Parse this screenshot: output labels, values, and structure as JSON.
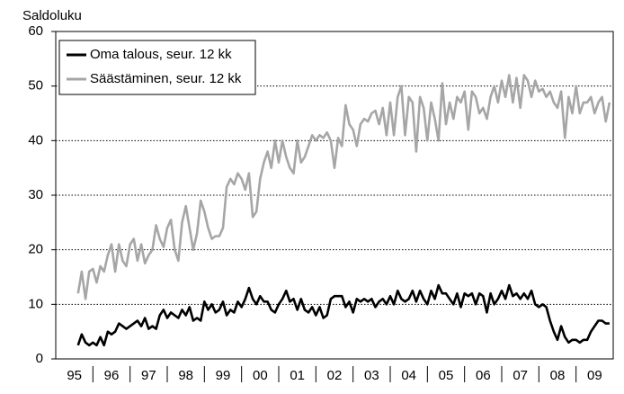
{
  "chart_data": {
    "type": "line",
    "y_axis_label": "Saldoluku",
    "x": [
      1995.6,
      1995.7,
      1995.8,
      1995.9,
      1996.0,
      1996.1,
      1996.2,
      1996.3,
      1996.4,
      1996.5,
      1996.6,
      1996.7,
      1996.8,
      1996.9,
      1997.0,
      1997.1,
      1997.2,
      1997.3,
      1997.4,
      1997.5,
      1997.6,
      1997.7,
      1997.8,
      1997.9,
      1998.0,
      1998.1,
      1998.2,
      1998.3,
      1998.4,
      1998.5,
      1998.6,
      1998.7,
      1998.8,
      1998.9,
      1999.0,
      1999.1,
      1999.2,
      1999.3,
      1999.4,
      1999.5,
      1999.6,
      1999.7,
      1999.8,
      1999.9,
      2000.0,
      2000.1,
      2000.2,
      2000.3,
      2000.4,
      2000.5,
      2000.6,
      2000.7,
      2000.8,
      2000.9,
      2001.0,
      2001.1,
      2001.2,
      2001.3,
      2001.4,
      2001.5,
      2001.6,
      2001.7,
      2001.8,
      2001.9,
      2002.0,
      2002.1,
      2002.2,
      2002.3,
      2002.4,
      2002.5,
      2002.6,
      2002.7,
      2002.8,
      2002.9,
      2003.0,
      2003.1,
      2003.2,
      2003.3,
      2003.4,
      2003.5,
      2003.6,
      2003.7,
      2003.8,
      2003.9,
      2004.0,
      2004.1,
      2004.2,
      2004.3,
      2004.4,
      2004.5,
      2004.6,
      2004.7,
      2004.8,
      2004.9,
      2005.0,
      2005.1,
      2005.2,
      2005.3,
      2005.4,
      2005.5,
      2005.6,
      2005.7,
      2005.8,
      2005.9,
      2006.0,
      2006.1,
      2006.2,
      2006.3,
      2006.4,
      2006.5,
      2006.6,
      2006.7,
      2006.8,
      2006.9,
      2007.0,
      2007.1,
      2007.2,
      2007.3,
      2007.4,
      2007.5,
      2007.6,
      2007.7,
      2007.8,
      2007.9,
      2008.0,
      2008.1,
      2008.2,
      2008.3,
      2008.4,
      2008.5,
      2008.6,
      2008.7,
      2008.8,
      2008.9,
      2009.0,
      2009.1,
      2009.2,
      2009.3,
      2009.4,
      2009.5,
      2009.6,
      2009.7,
      2009.8,
      2009.9
    ],
    "series": [
      {
        "name": "Oma talous, seur. 12 kk",
        "color": "#000000",
        "values": [
          2.5,
          4.5,
          3,
          2.5,
          3,
          2.5,
          4,
          2.5,
          5,
          4.5,
          5,
          6.5,
          6,
          5.5,
          6,
          6.5,
          7,
          6,
          7.5,
          5.5,
          6,
          5.5,
          8,
          9,
          7.5,
          8.5,
          8,
          7.5,
          9,
          8,
          9.5,
          7,
          7.5,
          7,
          10.5,
          9,
          10,
          8.5,
          9,
          10.5,
          8,
          9,
          8.5,
          10.5,
          9.5,
          11,
          13,
          11,
          10,
          11.5,
          10.5,
          10.5,
          9,
          8.5,
          10,
          11,
          12.5,
          10.5,
          11,
          9,
          11,
          9,
          8.5,
          9.5,
          8,
          9.5,
          7.5,
          8,
          11,
          11.5,
          11.5,
          11.5,
          9.5,
          10.5,
          8.5,
          11,
          10.5,
          11,
          10.5,
          11,
          9.5,
          10.5,
          11,
          10,
          11.5,
          10,
          12.5,
          11,
          10.5,
          11,
          12.5,
          10.5,
          12.5,
          11,
          10,
          12.5,
          11,
          13.5,
          12,
          12,
          11,
          10,
          12,
          9.5,
          12,
          11.5,
          12,
          10,
          12,
          11.5,
          8.5,
          12,
          10,
          11,
          12.5,
          11,
          13.5,
          11.5,
          12,
          11,
          12,
          11,
          12.5,
          10,
          9.5,
          10,
          9.5,
          7,
          5,
          3.5,
          6,
          4,
          3,
          3.5,
          3.5,
          3,
          3.5,
          3.5,
          5,
          6,
          7,
          7,
          6.5,
          6.5
        ]
      },
      {
        "name": "Säästäminen, seur. 12 kk",
        "color": "#a6a6a6",
        "values": [
          12,
          16,
          11,
          16,
          16.5,
          14,
          17,
          16,
          19,
          21,
          16,
          21,
          18,
          17,
          21,
          22,
          18,
          21,
          17.5,
          19,
          20,
          24.5,
          22,
          20.5,
          24,
          25.5,
          20,
          18,
          25,
          28,
          24,
          20,
          23,
          29,
          27,
          24,
          22,
          22.5,
          22.5,
          24,
          31.5,
          33,
          32,
          34,
          33,
          31,
          34,
          26,
          27,
          33,
          36,
          38,
          35,
          40,
          36,
          40,
          37,
          35,
          34,
          40,
          36,
          37,
          39,
          41,
          40,
          41,
          40.5,
          41.5,
          40,
          35,
          40.5,
          39,
          46.5,
          43,
          42,
          39,
          43,
          44,
          43.5,
          45,
          45.5,
          43,
          46,
          41,
          47,
          41,
          48,
          50,
          41,
          48,
          47,
          38,
          48,
          46,
          40,
          47,
          44,
          40,
          50.5,
          43,
          47,
          44,
          48,
          47,
          49,
          42,
          49,
          48,
          45,
          46,
          44,
          48,
          50,
          47,
          51,
          48,
          52,
          47,
          51.5,
          46,
          52,
          51,
          48,
          51,
          49,
          49.5,
          48,
          49,
          47,
          46,
          49,
          40.5,
          48,
          45,
          50,
          45,
          47,
          47,
          48,
          45,
          47,
          48,
          43.5,
          47
        ]
      }
    ],
    "xlim": [
      1995,
      2010
    ],
    "xticks": [
      {
        "value": 1995.5,
        "label": "95"
      },
      {
        "value": 1996.5,
        "label": "96"
      },
      {
        "value": 1997.5,
        "label": "97"
      },
      {
        "value": 1998.5,
        "label": "98"
      },
      {
        "value": 1999.5,
        "label": "99"
      },
      {
        "value": 2000.5,
        "label": "00"
      },
      {
        "value": 2001.5,
        "label": "01"
      },
      {
        "value": 2002.5,
        "label": "02"
      },
      {
        "value": 2003.5,
        "label": "03"
      },
      {
        "value": 2004.5,
        "label": "04"
      },
      {
        "value": 2005.5,
        "label": "05"
      },
      {
        "value": 2006.5,
        "label": "06"
      },
      {
        "value": 2007.5,
        "label": "07"
      },
      {
        "value": 2008.5,
        "label": "08"
      },
      {
        "value": 2009.5,
        "label": "09"
      }
    ],
    "ylim": [
      0,
      60
    ],
    "yticks": [
      0,
      10,
      20,
      30,
      40,
      50,
      60
    ],
    "grid": true,
    "legend": "upper left"
  }
}
